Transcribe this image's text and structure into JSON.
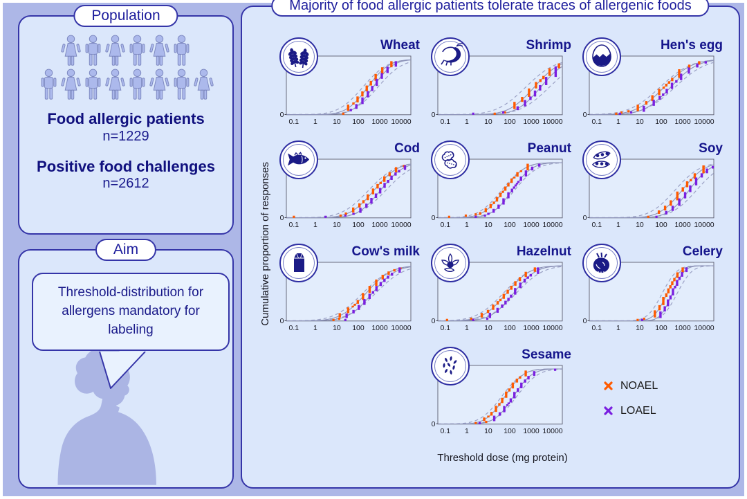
{
  "theme": {
    "outer_bg": "#adb7e7",
    "panel_bg": "#dbe7fb",
    "plot_bg": "#e3edfc",
    "panel_border": "#3535a8",
    "accent_navy": "#15158c",
    "noael_orange": "#ff5a00",
    "loael_purple": "#7a1fe0",
    "people_fill": "#acb9ec"
  },
  "population_panel": {
    "title": "Population",
    "people_rows": [
      [
        "female",
        "male",
        "female",
        "male",
        "female",
        "male"
      ],
      [
        "male",
        "female",
        "male",
        "female",
        "male",
        "female",
        "male",
        "female"
      ]
    ],
    "groups": [
      {
        "label": "Food allergic patients",
        "value": "n=1229"
      },
      {
        "label": "Positive food challenges",
        "value": "n=2612"
      }
    ]
  },
  "aim_panel": {
    "title": "Aim",
    "bubble_text": "Threshold-distribution for allergens mandatory for labeling"
  },
  "results_panel": {
    "title": "Majority of food allergic patients tolerate traces of allergenic foods",
    "ylabel": "Cumulative proportion of responses",
    "xlabel": "Threshold dose (mg protein)",
    "legend": [
      {
        "label": "NOAEL",
        "color": "#ff5a00",
        "marker": "x"
      },
      {
        "label": "LOAEL",
        "color": "#7a1fe0",
        "marker": "x"
      }
    ]
  },
  "chart_data": {
    "type": "line",
    "subtype": "stepped-cumulative-dose-distribution",
    "x_scale": "log10",
    "x_ticks": [
      0.1,
      1,
      10,
      100,
      1000,
      10000
    ],
    "xlabel": "Threshold dose (mg protein)",
    "ylabel": "Cumulative proportion of responses",
    "ylim": [
      0,
      1
    ],
    "y_ticks": [
      0,
      1
    ],
    "series_legend": [
      "NOAEL",
      "LOAEL"
    ],
    "colors": {
      "noael": "#ff5a00",
      "loael": "#7a1fe0",
      "fit_line": "#8d93b8",
      "ci_line": "#9aa0c4"
    },
    "foods": [
      {
        "name": "Wheat",
        "icon": "wheat-icon",
        "row": 1,
        "col": 1,
        "noael": {
          "ed50_mg": 280,
          "log10_sd": 0.8,
          "steps": 9,
          "p_range": [
            0.07,
            0.97
          ],
          "outliers_mg": [
            20
          ]
        },
        "loael": {
          "ed50_mg": 500,
          "log10_sd": 0.75,
          "steps": 9,
          "p_range": [
            0.06,
            0.97
          ],
          "outliers_mg": []
        },
        "fit": {
          "ed50_mg": 370,
          "log10_sd": 0.8,
          "ci_log10_offset": 0.35
        }
      },
      {
        "name": "Shrimp",
        "icon": "shrimp-icon",
        "row": 1,
        "col": 2,
        "noael": {
          "ed50_mg": 1400,
          "log10_sd": 0.95,
          "steps": 8,
          "p_range": [
            0.1,
            0.93
          ],
          "outliers_mg": [
            20,
            60
          ]
        },
        "loael": {
          "ed50_mg": 2800,
          "log10_sd": 0.9,
          "steps": 8,
          "p_range": [
            0.08,
            0.93
          ],
          "outliers_mg": [
            2,
            50
          ]
        },
        "fit": {
          "ed50_mg": 2000,
          "log10_sd": 0.95,
          "ci_log10_offset": 0.55
        }
      },
      {
        "name": "Hen's egg",
        "icon": "hens-egg-icon",
        "row": 1,
        "col": 3,
        "noael": {
          "ed50_mg": 140,
          "log10_sd": 1.05,
          "steps": 11,
          "p_range": [
            0.06,
            0.97
          ],
          "outliers_mg": [
            0.8,
            1.4,
            3
          ]
        },
        "loael": {
          "ed50_mg": 280,
          "log10_sd": 1.0,
          "steps": 11,
          "p_range": [
            0.05,
            0.97
          ],
          "outliers_mg": [
            1.2,
            4
          ]
        },
        "fit": {
          "ed50_mg": 200,
          "log10_sd": 1.0,
          "ci_log10_offset": 0.35
        }
      },
      {
        "name": "Cod",
        "icon": "cod-icon",
        "row": 2,
        "col": 1,
        "noael": {
          "ed50_mg": 550,
          "log10_sd": 0.9,
          "steps": 12,
          "p_range": [
            0.05,
            0.96
          ],
          "outliers_mg": [
            0.1,
            15
          ]
        },
        "loael": {
          "ed50_mg": 1100,
          "log10_sd": 0.85,
          "steps": 12,
          "p_range": [
            0.05,
            0.95
          ],
          "outliers_mg": [
            3,
            25
          ]
        },
        "fit": {
          "ed50_mg": 780,
          "log10_sd": 0.88,
          "ci_log10_offset": 0.4
        }
      },
      {
        "name": "Peanut",
        "icon": "peanut-icon",
        "row": 2,
        "col": 2,
        "noael": {
          "ed50_mg": 55,
          "log10_sd": 0.78,
          "steps": 14,
          "p_range": [
            0.05,
            0.98
          ],
          "outliers_mg": [
            0.15,
            0.9,
            2.6
          ]
        },
        "loael": {
          "ed50_mg": 130,
          "log10_sd": 0.75,
          "steps": 14,
          "p_range": [
            0.05,
            0.98
          ],
          "outliers_mg": [
            2.6,
            7
          ]
        },
        "fit": {
          "ed50_mg": 85,
          "log10_sd": 0.76,
          "ci_log10_offset": 0.3
        }
      },
      {
        "name": "Soy",
        "icon": "soy-icon",
        "row": 2,
        "col": 3,
        "noael": {
          "ed50_mg": 950,
          "log10_sd": 0.85,
          "steps": 9,
          "p_range": [
            0.07,
            0.95
          ],
          "outliers_mg": [
            25
          ]
        },
        "loael": {
          "ed50_mg": 2000,
          "log10_sd": 0.8,
          "steps": 9,
          "p_range": [
            0.06,
            0.94
          ],
          "outliers_mg": [
            60
          ]
        },
        "fit": {
          "ed50_mg": 1400,
          "log10_sd": 0.82,
          "ci_log10_offset": 0.5
        }
      },
      {
        "name": "Cow's milk",
        "icon": "milk-icon",
        "row": 3,
        "col": 1,
        "noael": {
          "ed50_mg": 230,
          "log10_sd": 0.95,
          "steps": 12,
          "p_range": [
            0.06,
            0.97
          ],
          "outliers_mg": [
            7,
            13
          ]
        },
        "loael": {
          "ed50_mg": 450,
          "log10_sd": 0.9,
          "steps": 12,
          "p_range": [
            0.05,
            0.97
          ],
          "outliers_mg": [
            25
          ]
        },
        "fit": {
          "ed50_mg": 320,
          "log10_sd": 0.92,
          "ci_log10_offset": 0.3
        }
      },
      {
        "name": "Hazelnut",
        "icon": "hazelnut-icon",
        "row": 3,
        "col": 2,
        "noael": {
          "ed50_mg": 70,
          "log10_sd": 0.9,
          "steps": 12,
          "p_range": [
            0.06,
            0.97
          ],
          "outliers_mg": [
            0.12,
            1.6
          ]
        },
        "loael": {
          "ed50_mg": 150,
          "log10_sd": 0.85,
          "steps": 12,
          "p_range": [
            0.05,
            0.97
          ],
          "outliers_mg": [
            2,
            9
          ]
        },
        "fit": {
          "ed50_mg": 100,
          "log10_sd": 0.88,
          "ci_log10_offset": 0.3
        }
      },
      {
        "name": "Celery",
        "icon": "celery-icon",
        "row": 3,
        "col": 3,
        "noael": {
          "ed50_mg": 190,
          "log10_sd": 0.5,
          "steps": 10,
          "p_range": [
            0.06,
            0.97
          ],
          "outliers_mg": [
            8,
            16
          ]
        },
        "loael": {
          "ed50_mg": 330,
          "log10_sd": 0.45,
          "steps": 10,
          "p_range": [
            0.05,
            0.97
          ],
          "outliers_mg": [
            13
          ]
        },
        "fit": {
          "ed50_mg": 250,
          "log10_sd": 0.48,
          "ci_log10_offset": 0.35
        }
      },
      {
        "name": "Sesame",
        "icon": "sesame-icon",
        "row": 4,
        "col": 2,
        "noael": {
          "ed50_mg": 60,
          "log10_sd": 0.7,
          "steps": 12,
          "p_range": [
            0.05,
            0.97
          ],
          "outliers_mg": [
            2.6,
            8
          ]
        },
        "loael": {
          "ed50_mg": 150,
          "log10_sd": 0.7,
          "steps": 12,
          "p_range": [
            0.05,
            0.96
          ],
          "outliers_mg": [
            4
          ],
          "high_outliers_mg": [
            13000
          ]
        },
        "fit": {
          "ed50_mg": 95,
          "log10_sd": 0.7,
          "ci_log10_offset": 0.35
        }
      }
    ]
  }
}
